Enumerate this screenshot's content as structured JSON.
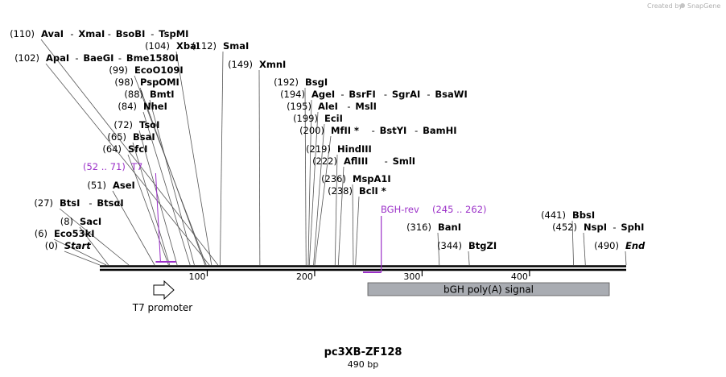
{
  "credit": "Created by",
  "brand": "SnapGene",
  "sequence": {
    "name": "pc3XB-ZF128",
    "length_label": "490 bp",
    "length_bp": 490
  },
  "ticks": [
    {
      "bp": 100,
      "label": "100"
    },
    {
      "bp": 200,
      "label": "200"
    },
    {
      "bp": 300,
      "label": "300"
    },
    {
      "bp": 400,
      "label": "400"
    }
  ],
  "sites": [
    {
      "pos": "(0)",
      "bp": 0,
      "enzymes": [
        "Start"
      ],
      "italic": true
    },
    {
      "pos": "(6)",
      "bp": 6,
      "enzymes": [
        "Eco53kI"
      ]
    },
    {
      "pos": "(8)",
      "bp": 8,
      "enzymes": [
        "SacI"
      ]
    },
    {
      "pos": "(27)",
      "bp": 27,
      "enzymes": [
        "BtsI",
        "BtsαI"
      ]
    },
    {
      "pos": "(51)",
      "bp": 51,
      "enzymes": [
        "AseI"
      ]
    },
    {
      "pos": "(64)",
      "bp": 64,
      "enzymes": [
        "SfcI"
      ]
    },
    {
      "pos": "(65)",
      "bp": 65,
      "enzymes": [
        "BsaI"
      ]
    },
    {
      "pos": "(72)",
      "bp": 72,
      "enzymes": [
        "TsoI"
      ]
    },
    {
      "pos": "(84)",
      "bp": 84,
      "enzymes": [
        "NheI"
      ]
    },
    {
      "pos": "(88)",
      "bp": 88,
      "enzymes": [
        "BmtI"
      ]
    },
    {
      "pos": "(98)",
      "bp": 98,
      "enzymes": [
        "PspOMI"
      ]
    },
    {
      "pos": "(99)",
      "bp": 99,
      "enzymes": [
        "EcoO109I"
      ]
    },
    {
      "pos": "(102)",
      "bp": 102,
      "enzymes": [
        "ApaI",
        "BaeGI",
        "Bme1580I"
      ]
    },
    {
      "pos": "(104)",
      "bp": 104,
      "enzymes": [
        "XbaI"
      ]
    },
    {
      "pos": "(110)",
      "bp": 110,
      "enzymes": [
        "AvaI",
        "XmaI",
        "BsoBI",
        "TspMI"
      ]
    },
    {
      "pos": "(112)",
      "bp": 112,
      "enzymes": [
        "SmaI"
      ]
    },
    {
      "pos": "(149)",
      "bp": 149,
      "enzymes": [
        "XmnI"
      ]
    },
    {
      "pos": "(192)",
      "bp": 192,
      "enzymes": [
        "BsgI"
      ]
    },
    {
      "pos": "(194)",
      "bp": 194,
      "enzymes": [
        "AgeI",
        "BsrFI",
        "SgrAI",
        "BsaWI"
      ]
    },
    {
      "pos": "(195)",
      "bp": 195,
      "enzymes": [
        "AleI",
        "MslI"
      ]
    },
    {
      "pos": "(199)",
      "bp": 199,
      "enzymes": [
        "EciI"
      ]
    },
    {
      "pos": "(200)",
      "bp": 200,
      "enzymes": [
        "MfII *",
        "BstYI",
        "BamHI"
      ]
    },
    {
      "pos": "(219)",
      "bp": 219,
      "enzymes": [
        "HindIII"
      ]
    },
    {
      "pos": "(222)",
      "bp": 222,
      "enzymes": [
        "AflIII",
        "SmlI"
      ]
    },
    {
      "pos": "(236)",
      "bp": 236,
      "enzymes": [
        "MspA1I"
      ]
    },
    {
      "pos": "(238)",
      "bp": 238,
      "enzymes": [
        "BclI *"
      ]
    },
    {
      "pos": "(316)",
      "bp": 316,
      "enzymes": [
        "BanI"
      ]
    },
    {
      "pos": "(344)",
      "bp": 344,
      "enzymes": [
        "BtgZI"
      ]
    },
    {
      "pos": "(441)",
      "bp": 441,
      "enzymes": [
        "BbsI"
      ]
    },
    {
      "pos": "(452)",
      "bp": 452,
      "enzymes": [
        "NspI",
        "SphI"
      ]
    },
    {
      "pos": "(490)",
      "bp": 490,
      "enzymes": [
        "End"
      ],
      "italic": true
    }
  ],
  "primers": [
    {
      "name": "T7",
      "range": "(52 .. 71)",
      "start": 52,
      "end": 71,
      "strand": "forward"
    },
    {
      "name": "BGH-rev",
      "range": "(245 .. 262)",
      "start": 245,
      "end": 262,
      "strand": "reverse"
    }
  ],
  "features": [
    {
      "name": "T7 promoter",
      "start": 52,
      "end": 71,
      "kind": "promoter",
      "color": "#ffffff"
    },
    {
      "name": "bGH poly(A) signal",
      "start": 250,
      "end": 474,
      "kind": "polyA",
      "color": "#a9acb2"
    }
  ],
  "colors": {
    "primer": "#9b30c8",
    "backbone": "#000000",
    "polyA_fill": "#a9acb2",
    "credit": "#b0b0b0"
  }
}
